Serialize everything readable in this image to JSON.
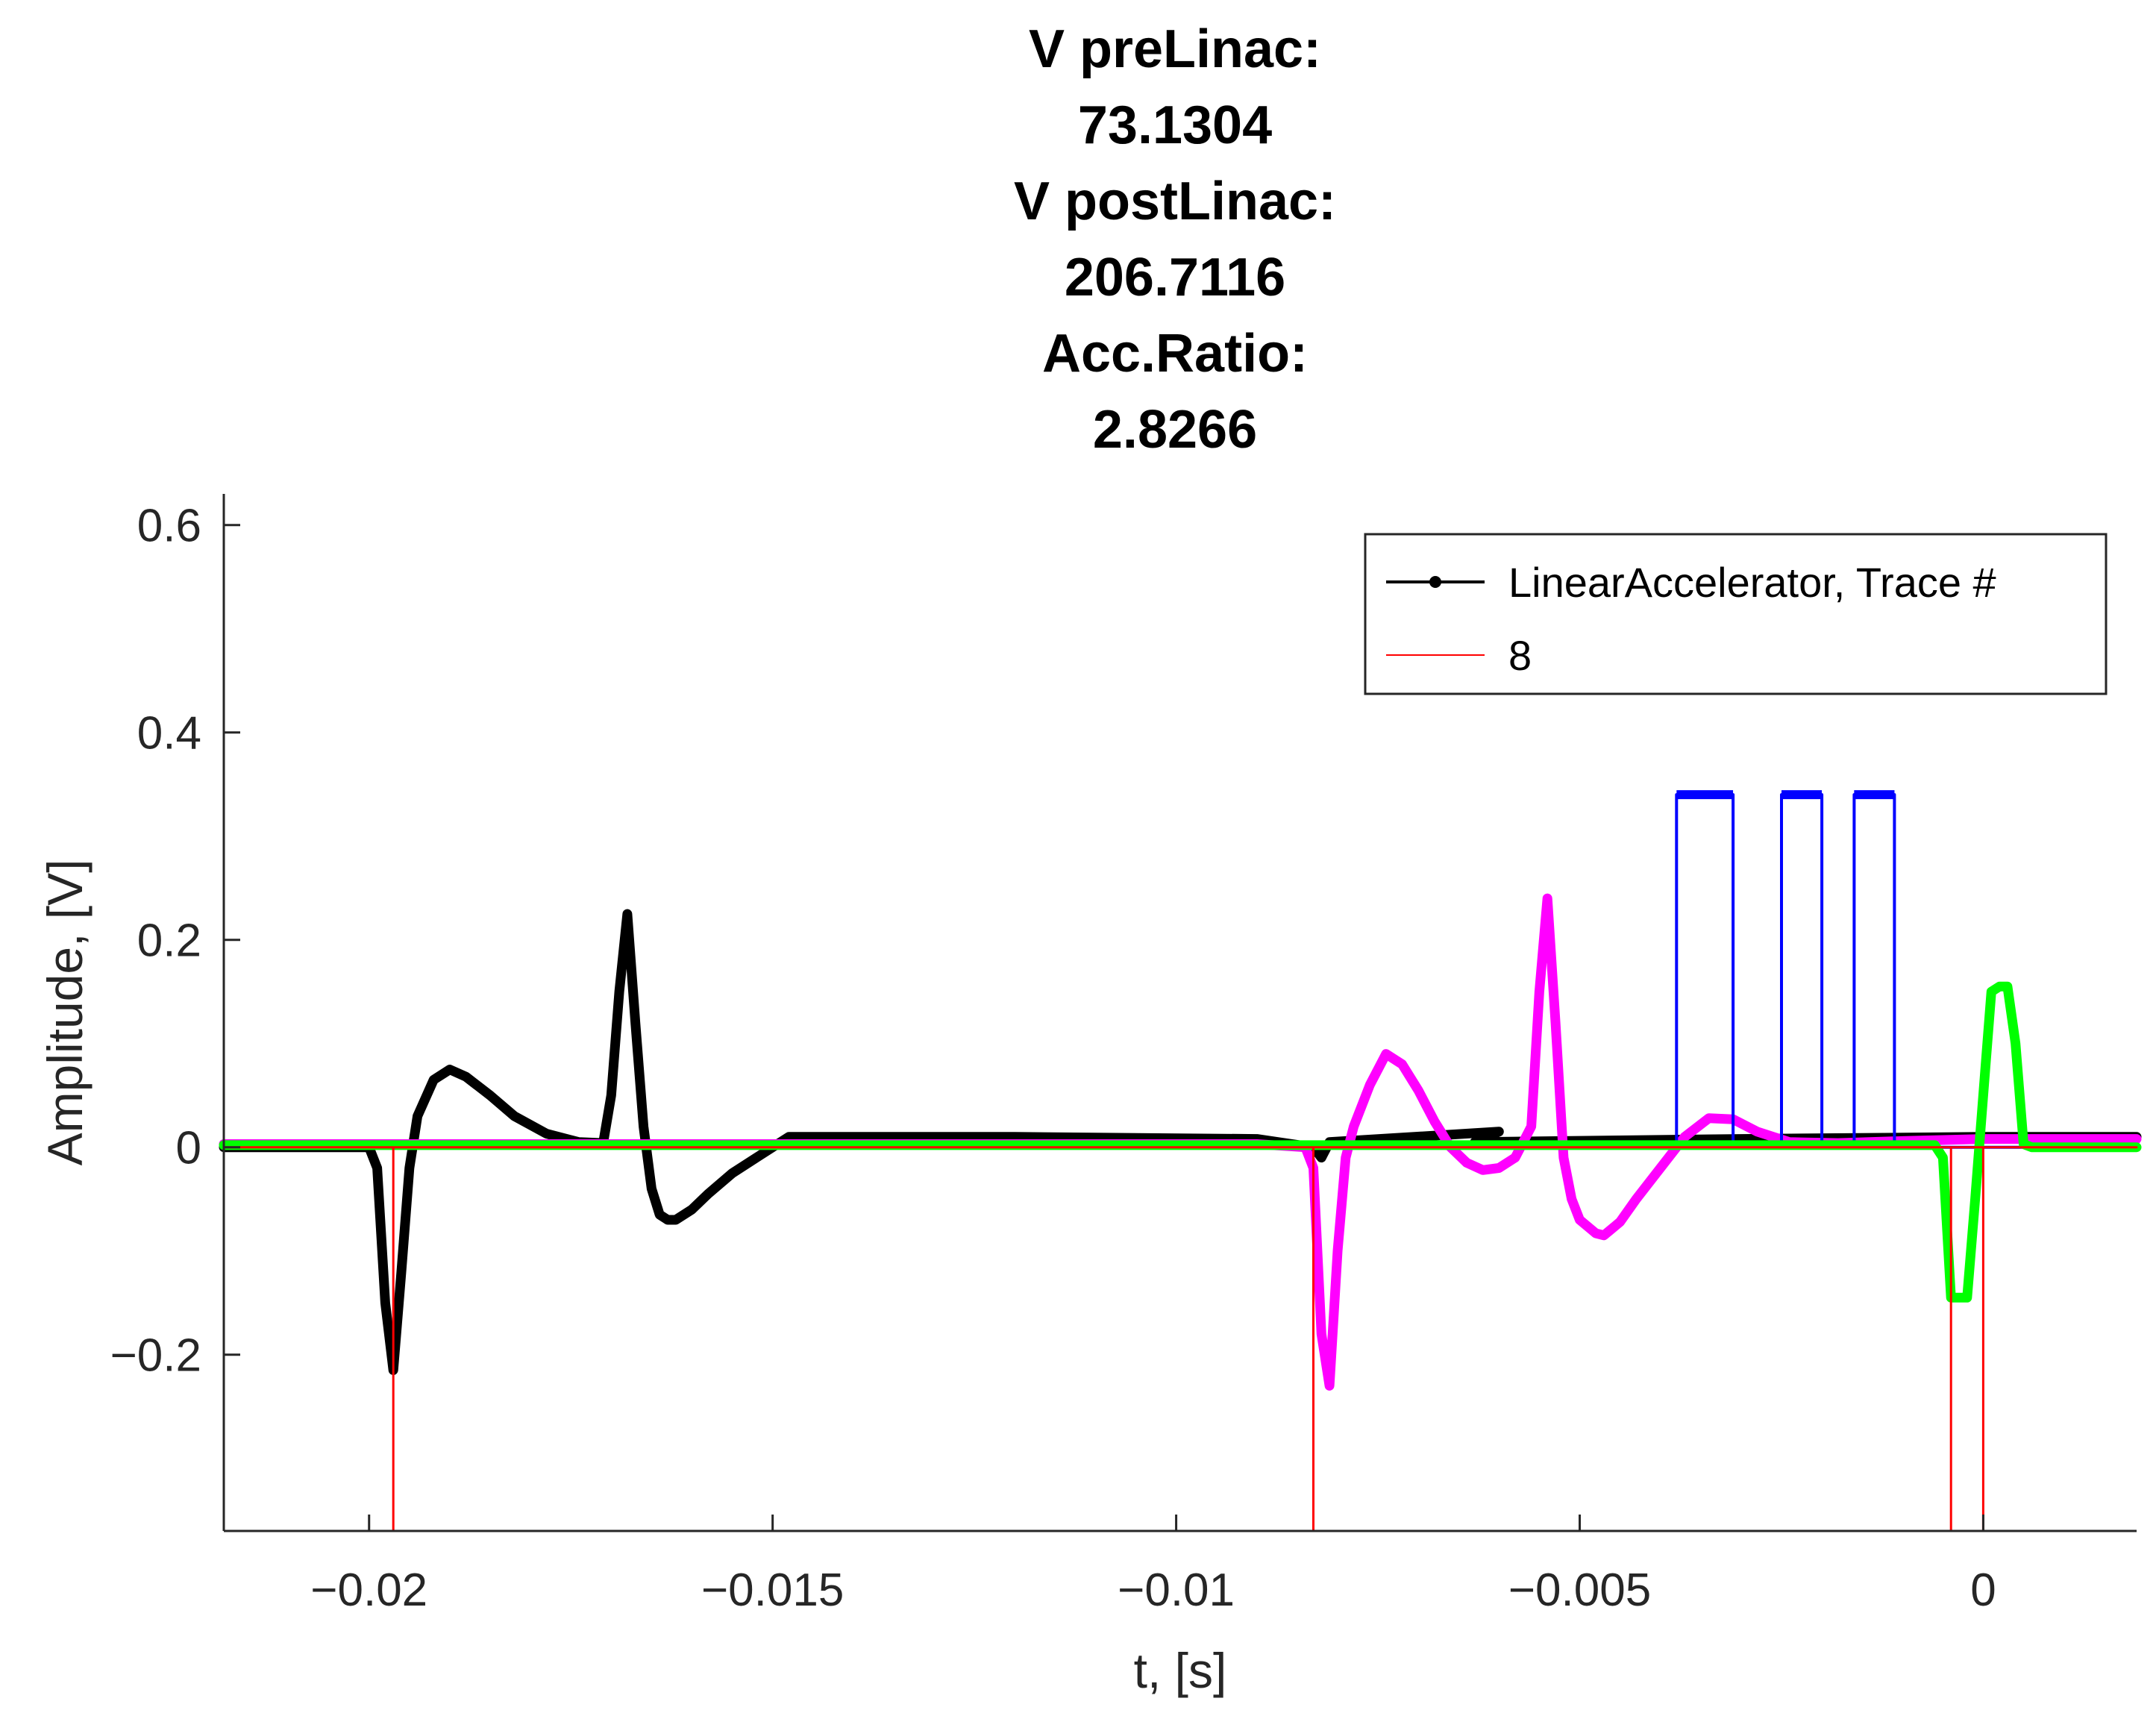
{
  "chart_data": {
    "type": "line",
    "title_lines": [
      "V preLinac:",
      "73.1304",
      "V postLinac:",
      "206.7116",
      "Acc.Ratio:",
      "2.8266"
    ],
    "xlabel": "t, [s]",
    "ylabel": "Amplitude, [V]",
    "xlim": [
      -0.0218,
      0.0019
    ],
    "ylim": [
      -0.37,
      0.63
    ],
    "xticks": [
      -0.02,
      -0.015,
      -0.01,
      -0.005,
      0
    ],
    "xtick_labels": [
      "−0.02",
      "−0.015",
      "−0.01",
      "−0.005",
      "0"
    ],
    "yticks": [
      -0.2,
      0,
      0.2,
      0.4,
      0.6
    ],
    "ytick_labels": [
      "−0.2",
      "0",
      "0.2",
      "0.4",
      "0.6"
    ],
    "grid": false,
    "legend": {
      "placement": "top-right",
      "entries": [
        {
          "label": "LinearAccelerator, Trace #",
          "color": "#000000",
          "marker": "dot"
        },
        {
          "label": "8",
          "color": "#ff0000",
          "marker": "none"
        }
      ]
    },
    "series": [
      {
        "color": "#000000",
        "style": "thick-dots",
        "x": [
          -0.0218,
          -0.0203,
          -0.0201,
          -0.02,
          -0.0199,
          -0.0198,
          -0.0197,
          -0.0196,
          -0.0195,
          -0.0194,
          -0.0192,
          -0.019,
          -0.0188,
          -0.0185,
          -0.0182,
          -0.0178,
          -0.0174,
          -0.0171,
          -0.017,
          -0.0169,
          -0.0168,
          -0.0167,
          -0.0166,
          -0.0165,
          -0.0164,
          -0.0163,
          -0.0162,
          -0.016,
          -0.0158,
          -0.0155,
          -0.0152,
          -0.0148,
          -0.012,
          -0.009,
          -0.0083,
          -0.0082,
          -0.0081,
          -0.006,
          -0.0063,
          -0.003,
          0.0,
          0.0019
        ],
        "y": [
          0.0,
          0.0,
          0.0,
          0.0,
          -0.02,
          -0.15,
          -0.215,
          -0.12,
          -0.02,
          0.03,
          0.065,
          0.075,
          0.068,
          0.05,
          0.03,
          0.013,
          0.005,
          0.004,
          0.05,
          0.15,
          0.225,
          0.12,
          0.02,
          -0.04,
          -0.065,
          -0.07,
          -0.07,
          -0.06,
          -0.045,
          -0.025,
          -0.01,
          0.01,
          0.01,
          0.008,
          0.0,
          -0.01,
          0.005,
          0.015,
          0.005,
          0.008,
          0.01,
          0.01
        ]
      },
      {
        "color": "#ff00ff",
        "style": "thick-dots",
        "x": [
          -0.0218,
          -0.009,
          -0.0084,
          -0.0083,
          -0.0082,
          -0.0081,
          -0.008,
          -0.0079,
          -0.0078,
          -0.0076,
          -0.0074,
          -0.0072,
          -0.007,
          -0.0068,
          -0.0066,
          -0.0064,
          -0.0062,
          -0.006,
          -0.0058,
          -0.0056,
          -0.0055,
          -0.0054,
          -0.0053,
          -0.0052,
          -0.0051,
          -0.005,
          -0.0048,
          -0.0047,
          -0.0045,
          -0.0043,
          -0.004,
          -0.0037,
          -0.0034,
          -0.0031,
          -0.0028,
          -0.0024,
          -0.0018,
          -0.001,
          0.0,
          0.0019
        ],
        "y": [
          0.003,
          0.003,
          0.0,
          -0.02,
          -0.18,
          -0.23,
          -0.1,
          -0.01,
          0.02,
          0.06,
          0.09,
          0.08,
          0.055,
          0.025,
          0.0,
          -0.015,
          -0.022,
          -0.02,
          -0.01,
          0.02,
          0.15,
          0.24,
          0.12,
          -0.01,
          -0.05,
          -0.07,
          -0.083,
          -0.085,
          -0.072,
          -0.05,
          -0.02,
          0.01,
          0.028,
          0.027,
          0.015,
          0.005,
          0.004,
          0.006,
          0.008,
          0.008
        ]
      },
      {
        "color": "#0000ff",
        "style": "pulses",
        "x": [
          -0.0218,
          -0.0038,
          -0.0038,
          -0.0031,
          -0.0031,
          -0.0025,
          -0.0025,
          -0.002,
          -0.002,
          -0.0016,
          -0.0016,
          -0.0011,
          -0.0011,
          0.0019
        ],
        "y": [
          0.0,
          0.0,
          0.34,
          0.34,
          0.0,
          0.0,
          0.34,
          0.34,
          0.0,
          0.0,
          0.34,
          0.34,
          0.0,
          0.0
        ]
      },
      {
        "color": "#00ff00",
        "style": "thick-dots",
        "x": [
          -0.0218,
          -0.0006,
          -0.0005,
          -0.0004,
          -0.0003,
          -0.0002,
          -0.0001,
          0.0,
          0.0001,
          0.0002,
          0.0003,
          0.0004,
          0.0005,
          0.0006,
          0.0019
        ],
        "y": [
          0.002,
          0.002,
          -0.01,
          -0.145,
          -0.145,
          -0.145,
          -0.05,
          0.05,
          0.15,
          0.155,
          0.155,
          0.1,
          0.003,
          0.0,
          0.0
        ]
      },
      {
        "color": "#ff0000",
        "style": "spikes",
        "x": [
          -0.0218,
          -0.0197,
          -0.0197,
          -0.0197,
          -0.0083,
          -0.0083,
          -0.0083,
          -0.0004,
          -0.0004,
          -0.0004,
          0.0,
          0.0,
          0.0,
          0.0019
        ],
        "y": [
          0.0,
          0.0,
          -0.37,
          0.0,
          0.0,
          -0.37,
          0.0,
          0.0,
          -0.37,
          0.0,
          0.0,
          -0.37,
          0.0,
          0.0
        ]
      }
    ]
  }
}
